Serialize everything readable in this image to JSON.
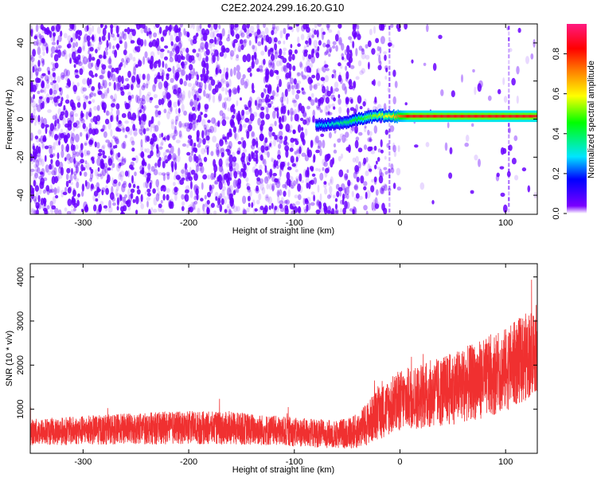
{
  "title": "C2E2.2024.299.16.20.G10",
  "colors": {
    "spectrogram_noise": "#6a00ff",
    "snr_line": "#f03030",
    "colormap": [
      "#ffffff",
      "#7a00ff",
      "#0000ff",
      "#00e5ff",
      "#00ff00",
      "#ffff00",
      "#ff8000",
      "#ff0000",
      "#ff1a80"
    ]
  },
  "chart_data": [
    {
      "type": "heatmap",
      "xlabel": "Height of straight line (km)",
      "ylabel": "Frequency (Hz)",
      "xlim": [
        -350,
        130
      ],
      "ylim": [
        -50,
        50
      ],
      "xticks": [
        -300,
        -200,
        -100,
        0,
        100
      ],
      "yticks": [
        -40,
        -20,
        0,
        20,
        40
      ],
      "colorbar": {
        "label": "Normalized spectral amplitude",
        "range": [
          0,
          0.95
        ],
        "ticks": [
          0.0,
          0.2,
          0.4,
          0.6,
          0.8
        ]
      },
      "signal_trace": {
        "x": [
          -80,
          -70,
          -60,
          -50,
          -40,
          -30,
          -20,
          -10,
          0,
          10,
          30,
          60,
          100,
          130
        ],
        "y": [
          -3,
          -3,
          -2.5,
          -1.5,
          0,
          1,
          2,
          1.5,
          1.5,
          1.5,
          1.5,
          1.5,
          1.5,
          1.5
        ],
        "amplitude": [
          0.3,
          0.3,
          0.35,
          0.4,
          0.45,
          0.5,
          0.55,
          0.6,
          0.75,
          0.85,
          0.85,
          0.85,
          0.85,
          0.85
        ]
      },
      "grid": false
    },
    {
      "type": "line",
      "xlabel": "Height of straight line (km)",
      "ylabel": "SNR (10 * v/v)",
      "xlim": [
        -350,
        130
      ],
      "ylim": [
        0,
        4300
      ],
      "xticks": [
        -300,
        -200,
        -100,
        0,
        100
      ],
      "yticks": [
        1000,
        2000,
        3000,
        4000
      ],
      "series": [
        {
          "x": [
            -350,
            -300,
            -250,
            -200,
            -150,
            -100,
            -60,
            -40,
            -20,
            0,
            20,
            40,
            60,
            80,
            100,
            120,
            130
          ],
          "y": [
            480,
            520,
            560,
            580,
            560,
            480,
            430,
            500,
            900,
            1200,
            1300,
            1400,
            1550,
            1700,
            1900,
            2200,
            2400
          ],
          "spread": [
            300,
            330,
            360,
            380,
            370,
            330,
            320,
            400,
            600,
            700,
            750,
            800,
            850,
            900,
            950,
            1000,
            1000
          ]
        }
      ],
      "grid": false
    }
  ]
}
